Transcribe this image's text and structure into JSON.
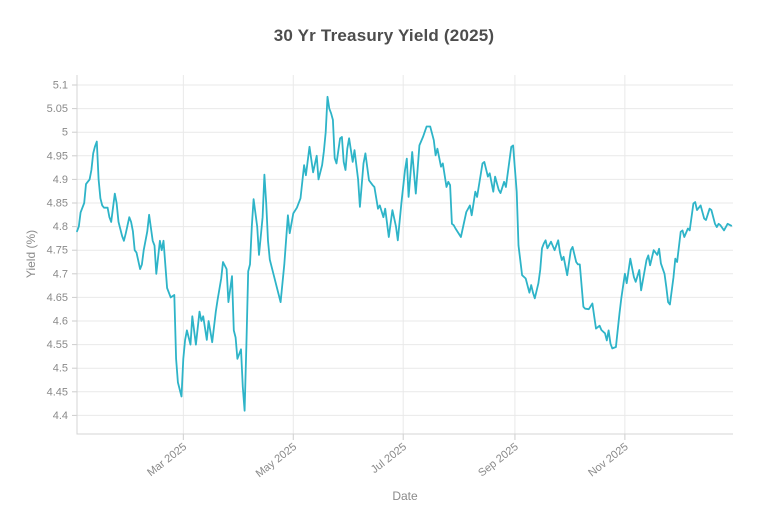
{
  "chart_data": {
    "type": "line",
    "title": "30 Yr Treasury Yield (2025)",
    "xlabel": "Date",
    "ylabel": "Yield (%)",
    "ylim": [
      4.4,
      5.1
    ],
    "xlim_days": [
      0,
      364
    ],
    "grid": true,
    "legend": false,
    "line_color": "#2eb4c8",
    "colors": {
      "title": "#4d4d4d",
      "grid": "#e9e9e9",
      "axis": "#d4d4d4",
      "tick": "#cdcdcd",
      "tick_label": "#8a8a8a",
      "axis_title": "#8a8a8a",
      "background": "#ffffff"
    },
    "y_ticks": [
      {
        "value": 4.4,
        "label": "4.4"
      },
      {
        "value": 4.45,
        "label": "4.45"
      },
      {
        "value": 4.5,
        "label": "4.5"
      },
      {
        "value": 4.55,
        "label": "4.55"
      },
      {
        "value": 4.6,
        "label": "4.6"
      },
      {
        "value": 4.65,
        "label": "4.65"
      },
      {
        "value": 4.7,
        "label": "4.7"
      },
      {
        "value": 4.75,
        "label": "4.75"
      },
      {
        "value": 4.8,
        "label": "4.8"
      },
      {
        "value": 4.85,
        "label": "4.85"
      },
      {
        "value": 4.9,
        "label": "4.9"
      },
      {
        "value": 4.95,
        "label": "4.95"
      },
      {
        "value": 5,
        "label": "5"
      },
      {
        "value": 5.05,
        "label": "5.05"
      },
      {
        "value": 5.1,
        "label": "5.1"
      }
    ],
    "x_ticks": [
      {
        "day": 59,
        "label": "Mar 2025"
      },
      {
        "day": 120,
        "label": "May 2025"
      },
      {
        "day": 181,
        "label": "Jul 2025"
      },
      {
        "day": 243,
        "label": "Sep 2025"
      },
      {
        "day": 304,
        "label": "Nov 2025"
      }
    ],
    "series": [
      {
        "name": "30 Yr Treasury Yield",
        "points": [
          [
            0,
            4.79
          ],
          [
            1,
            4.8
          ],
          [
            2,
            4.83
          ],
          [
            4,
            4.85
          ],
          [
            5,
            4.89
          ],
          [
            7,
            4.9
          ],
          [
            8,
            4.92
          ],
          [
            9,
            4.955
          ],
          [
            10,
            4.97
          ],
          [
            11,
            4.98
          ],
          [
            12,
            4.9
          ],
          [
            13,
            4.86
          ],
          [
            14,
            4.845
          ],
          [
            15,
            4.84
          ],
          [
            17,
            4.84
          ],
          [
            18,
            4.82
          ],
          [
            19,
            4.81
          ],
          [
            21,
            4.87
          ],
          [
            22,
            4.85
          ],
          [
            23,
            4.81
          ],
          [
            25,
            4.78
          ],
          [
            26,
            4.77
          ],
          [
            27,
            4.785
          ],
          [
            29,
            4.82
          ],
          [
            30,
            4.81
          ],
          [
            31,
            4.79
          ],
          [
            32,
            4.75
          ],
          [
            33,
            4.745
          ],
          [
            35,
            4.71
          ],
          [
            36,
            4.72
          ],
          [
            37,
            4.75
          ],
          [
            39,
            4.79
          ],
          [
            40,
            4.825
          ],
          [
            42,
            4.77
          ],
          [
            43,
            4.76
          ],
          [
            44,
            4.7
          ],
          [
            46,
            4.77
          ],
          [
            47,
            4.75
          ],
          [
            48,
            4.77
          ],
          [
            50,
            4.67
          ],
          [
            52,
            4.65
          ],
          [
            54,
            4.655
          ],
          [
            55,
            4.52
          ],
          [
            56,
            4.47
          ],
          [
            58,
            4.44
          ],
          [
            59,
            4.52
          ],
          [
            60,
            4.56
          ],
          [
            61,
            4.58
          ],
          [
            63,
            4.55
          ],
          [
            64,
            4.61
          ],
          [
            66,
            4.55
          ],
          [
            68,
            4.62
          ],
          [
            69,
            4.6
          ],
          [
            70,
            4.61
          ],
          [
            72,
            4.56
          ],
          [
            73,
            4.6
          ],
          [
            75,
            4.555
          ],
          [
            77,
            4.62
          ],
          [
            78,
            4.645
          ],
          [
            80,
            4.69
          ],
          [
            81,
            4.725
          ],
          [
            83,
            4.71
          ],
          [
            84,
            4.64
          ],
          [
            86,
            4.695
          ],
          [
            87,
            4.58
          ],
          [
            88,
            4.565
          ],
          [
            89,
            4.52
          ],
          [
            91,
            4.54
          ],
          [
            92,
            4.46
          ],
          [
            93,
            4.41
          ],
          [
            94,
            4.55
          ],
          [
            95,
            4.705
          ],
          [
            96,
            4.72
          ],
          [
            97,
            4.8
          ],
          [
            98,
            4.858
          ],
          [
            100,
            4.8
          ],
          [
            101,
            4.74
          ],
          [
            103,
            4.82
          ],
          [
            104,
            4.91
          ],
          [
            105,
            4.85
          ],
          [
            106,
            4.77
          ],
          [
            107,
            4.73
          ],
          [
            109,
            4.7
          ],
          [
            111,
            4.67
          ],
          [
            113,
            4.64
          ],
          [
            115,
            4.72
          ],
          [
            117,
            4.824
          ],
          [
            118,
            4.786
          ],
          [
            120,
            4.828
          ],
          [
            122,
            4.84
          ],
          [
            124,
            4.86
          ],
          [
            126,
            4.93
          ],
          [
            127,
            4.909
          ],
          [
            129,
            4.969
          ],
          [
            131,
            4.915
          ],
          [
            133,
            4.95
          ],
          [
            134,
            4.9
          ],
          [
            136,
            4.93
          ],
          [
            137,
            4.96
          ],
          [
            138,
            5.0
          ],
          [
            139,
            5.075
          ],
          [
            140,
            5.05
          ],
          [
            141,
            5.04
          ],
          [
            142,
            5.026
          ],
          [
            143,
            4.945
          ],
          [
            144,
            4.934
          ],
          [
            146,
            4.987
          ],
          [
            147,
            4.99
          ],
          [
            148,
            4.937
          ],
          [
            149,
            4.92
          ],
          [
            150,
            4.965
          ],
          [
            151,
            4.987
          ],
          [
            153,
            4.937
          ],
          [
            154,
            4.962
          ],
          [
            156,
            4.9
          ],
          [
            157,
            4.842
          ],
          [
            159,
            4.934
          ],
          [
            160,
            4.955
          ],
          [
            162,
            4.898
          ],
          [
            164,
            4.888
          ],
          [
            165,
            4.884
          ],
          [
            167,
            4.838
          ],
          [
            168,
            4.845
          ],
          [
            170,
            4.82
          ],
          [
            171,
            4.838
          ],
          [
            173,
            4.778
          ],
          [
            175,
            4.835
          ],
          [
            177,
            4.8
          ],
          [
            178,
            4.771
          ],
          [
            180,
            4.85
          ],
          [
            182,
            4.92
          ],
          [
            183,
            4.944
          ],
          [
            184,
            4.863
          ],
          [
            186,
            4.958
          ],
          [
            188,
            4.87
          ],
          [
            190,
            4.972
          ],
          [
            192,
            4.99
          ],
          [
            194,
            5.012
          ],
          [
            196,
            5.012
          ],
          [
            198,
            4.983
          ],
          [
            199,
            4.951
          ],
          [
            200,
            4.965
          ],
          [
            202,
            4.927
          ],
          [
            203,
            4.934
          ],
          [
            205,
            4.884
          ],
          [
            206,
            4.895
          ],
          [
            207,
            4.888
          ],
          [
            208,
            4.806
          ],
          [
            209,
            4.803
          ],
          [
            210,
            4.796
          ],
          [
            213,
            4.778
          ],
          [
            216,
            4.831
          ],
          [
            218,
            4.845
          ],
          [
            219,
            4.824
          ],
          [
            221,
            4.874
          ],
          [
            222,
            4.863
          ],
          [
            225,
            4.934
          ],
          [
            226,
            4.937
          ],
          [
            228,
            4.906
          ],
          [
            229,
            4.913
          ],
          [
            231,
            4.874
          ],
          [
            232,
            4.906
          ],
          [
            234,
            4.878
          ],
          [
            235,
            4.871
          ],
          [
            237,
            4.895
          ],
          [
            238,
            4.884
          ],
          [
            241,
            4.969
          ],
          [
            242,
            4.972
          ],
          [
            244,
            4.874
          ],
          [
            245,
            4.76
          ],
          [
            247,
            4.697
          ],
          [
            249,
            4.69
          ],
          [
            251,
            4.66
          ],
          [
            252,
            4.676
          ],
          [
            253,
            4.66
          ],
          [
            254,
            4.648
          ],
          [
            256,
            4.68
          ],
          [
            257,
            4.708
          ],
          [
            258,
            4.754
          ],
          [
            259,
            4.764
          ],
          [
            260,
            4.771
          ],
          [
            261,
            4.754
          ],
          [
            263,
            4.768
          ],
          [
            265,
            4.75
          ],
          [
            267,
            4.771
          ],
          [
            268,
            4.745
          ],
          [
            269,
            4.729
          ],
          [
            270,
            4.736
          ],
          [
            272,
            4.697
          ],
          [
            274,
            4.75
          ],
          [
            275,
            4.757
          ],
          [
            277,
            4.725
          ],
          [
            278,
            4.72
          ],
          [
            279,
            4.72
          ],
          [
            281,
            4.63
          ],
          [
            282,
            4.626
          ],
          [
            284,
            4.625
          ],
          [
            286,
            4.637
          ],
          [
            287,
            4.61
          ],
          [
            288,
            4.584
          ],
          [
            290,
            4.59
          ],
          [
            291,
            4.581
          ],
          [
            293,
            4.574
          ],
          [
            294,
            4.559
          ],
          [
            295,
            4.58
          ],
          [
            296,
            4.552
          ],
          [
            297,
            4.542
          ],
          [
            299,
            4.545
          ],
          [
            301,
            4.616
          ],
          [
            302,
            4.648
          ],
          [
            304,
            4.7
          ],
          [
            305,
            4.68
          ],
          [
            307,
            4.732
          ],
          [
            309,
            4.693
          ],
          [
            310,
            4.683
          ],
          [
            312,
            4.708
          ],
          [
            313,
            4.665
          ],
          [
            316,
            4.729
          ],
          [
            317,
            4.739
          ],
          [
            318,
            4.718
          ],
          [
            320,
            4.75
          ],
          [
            322,
            4.74
          ],
          [
            323,
            4.753
          ],
          [
            324,
            4.722
          ],
          [
            326,
            4.7
          ],
          [
            327,
            4.672
          ],
          [
            328,
            4.64
          ],
          [
            329,
            4.635
          ],
          [
            331,
            4.693
          ],
          [
            332,
            4.732
          ],
          [
            333,
            4.725
          ],
          [
            335,
            4.789
          ],
          [
            336,
            4.792
          ],
          [
            337,
            4.778
          ],
          [
            339,
            4.796
          ],
          [
            340,
            4.792
          ],
          [
            342,
            4.849
          ],
          [
            343,
            4.852
          ],
          [
            344,
            4.835
          ],
          [
            346,
            4.845
          ],
          [
            348,
            4.817
          ],
          [
            349,
            4.814
          ],
          [
            351,
            4.838
          ],
          [
            352,
            4.835
          ],
          [
            354,
            4.806
          ],
          [
            355,
            4.799
          ],
          [
            356,
            4.806
          ],
          [
            357,
            4.803
          ],
          [
            359,
            4.792
          ],
          [
            361,
            4.806
          ],
          [
            363,
            4.802
          ]
        ]
      }
    ]
  }
}
